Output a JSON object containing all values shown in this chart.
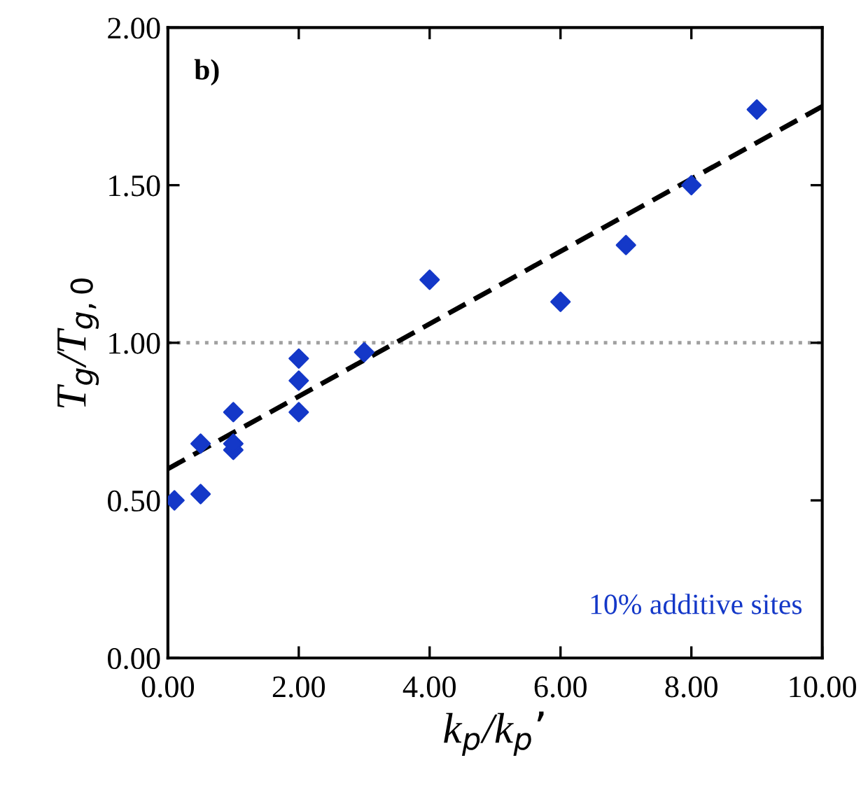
{
  "chart_data": {
    "type": "scatter",
    "xlabel": "k$_{p}$/k$_{p}$’",
    "ylabel": "T$_{g}$/T$_{g,0}$",
    "annotations": [
      "b)",
      "10% additive sites"
    ],
    "grid": false,
    "legend": false,
    "xlim": [
      0,
      10
    ],
    "ylim": [
      0,
      2
    ],
    "xticks": [
      {
        "value": 0,
        "label": "0.00"
      },
      {
        "value": 2,
        "label": "2.00"
      },
      {
        "value": 4,
        "label": "4.00"
      },
      {
        "value": 6,
        "label": "6.00"
      },
      {
        "value": 8,
        "label": "8.00"
      },
      {
        "value": 10,
        "label": "10.00"
      }
    ],
    "yticks": [
      {
        "value": 0,
        "label": "0.00"
      },
      {
        "value": 0.5,
        "label": "0.50"
      },
      {
        "value": 1,
        "label": "1.00"
      },
      {
        "value": 1.5,
        "label": "1.50"
      },
      {
        "value": 2,
        "label": "2.00"
      }
    ],
    "ref_lines": [
      {
        "axis": "y",
        "value": 1,
        "color": "#a0a0a0",
        "line_style": "dotted"
      }
    ],
    "series": [
      {
        "marker": "diamond",
        "color": "#1438c8",
        "x": [
          0.1,
          0.5,
          0.5,
          1,
          1,
          1,
          2,
          2,
          2,
          3,
          4,
          6,
          7,
          8,
          9
        ],
        "values": [
          0.5,
          0.52,
          0.68,
          0.66,
          0.68,
          0.78,
          0.78,
          0.88,
          0.95,
          0.97,
          1.2,
          1.13,
          1.31,
          1.5,
          1.74
        ]
      },
      {
        "type": "line",
        "marker": "none",
        "color": "#000000",
        "line_style": "dashed",
        "x": [
          0,
          10
        ],
        "values": [
          0.6,
          1.75
        ]
      }
    ]
  }
}
